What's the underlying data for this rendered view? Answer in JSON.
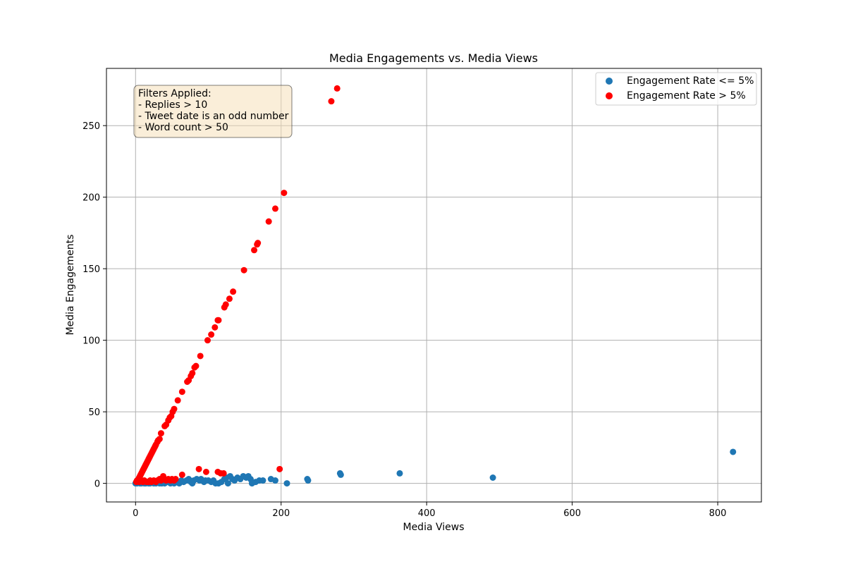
{
  "chart_data": {
    "type": "scatter",
    "title": "Media Engagements vs. Media Views",
    "xlabel": "Media Views",
    "ylabel": "Media Engagements",
    "xlim": [
      -40,
      860
    ],
    "ylim": [
      -13,
      290
    ],
    "xticks": [
      0,
      200,
      400,
      600,
      800
    ],
    "yticks": [
      0,
      50,
      100,
      150,
      200,
      250
    ],
    "grid": true,
    "legend_position": "top-right",
    "annotation": {
      "lines": [
        "Filters Applied:",
        "- Replies > 10",
        "- Tweet date is an odd number",
        "- Word count > 50"
      ]
    },
    "series": [
      {
        "name": "Engagement Rate <= 5%",
        "color": "#1f77b4",
        "points": [
          [
            0,
            0
          ],
          [
            2,
            0
          ],
          [
            4,
            1
          ],
          [
            6,
            0
          ],
          [
            8,
            0
          ],
          [
            10,
            1
          ],
          [
            12,
            0
          ],
          [
            14,
            0
          ],
          [
            16,
            1
          ],
          [
            18,
            0
          ],
          [
            20,
            0
          ],
          [
            22,
            1
          ],
          [
            25,
            0
          ],
          [
            28,
            0
          ],
          [
            30,
            1
          ],
          [
            33,
            0
          ],
          [
            36,
            0
          ],
          [
            40,
            0
          ],
          [
            44,
            1
          ],
          [
            48,
            0
          ],
          [
            50,
            1
          ],
          [
            53,
            0
          ],
          [
            57,
            1
          ],
          [
            60,
            0
          ],
          [
            63,
            2
          ],
          [
            66,
            1
          ],
          [
            70,
            2
          ],
          [
            73,
            3
          ],
          [
            76,
            1
          ],
          [
            78,
            0
          ],
          [
            80,
            2
          ],
          [
            84,
            3
          ],
          [
            88,
            2
          ],
          [
            90,
            3
          ],
          [
            94,
            1
          ],
          [
            96,
            2
          ],
          [
            100,
            2
          ],
          [
            104,
            1
          ],
          [
            107,
            2
          ],
          [
            110,
            0
          ],
          [
            114,
            0
          ],
          [
            118,
            1
          ],
          [
            122,
            3
          ],
          [
            125,
            4
          ],
          [
            127,
            0
          ],
          [
            130,
            5
          ],
          [
            133,
            3
          ],
          [
            136,
            2
          ],
          [
            140,
            4
          ],
          [
            144,
            3
          ],
          [
            148,
            5
          ],
          [
            152,
            4
          ],
          [
            155,
            5
          ],
          [
            158,
            3
          ],
          [
            160,
            0
          ],
          [
            165,
            1
          ],
          [
            170,
            2
          ],
          [
            175,
            2
          ],
          [
            186,
            3
          ],
          [
            192,
            2
          ],
          [
            208,
            0
          ],
          [
            236,
            3
          ],
          [
            237,
            2
          ],
          [
            281,
            7
          ],
          [
            282,
            6
          ],
          [
            363,
            7
          ],
          [
            491,
            4
          ],
          [
            821,
            22
          ]
        ]
      },
      {
        "name": "Engagement Rate > 5%",
        "color": "#ff0000",
        "points": [
          [
            1,
            1
          ],
          [
            2,
            2
          ],
          [
            3,
            2
          ],
          [
            4,
            3
          ],
          [
            5,
            4
          ],
          [
            6,
            5
          ],
          [
            7,
            6
          ],
          [
            8,
            7
          ],
          [
            9,
            8
          ],
          [
            10,
            9
          ],
          [
            11,
            10
          ],
          [
            12,
            11
          ],
          [
            13,
            12
          ],
          [
            14,
            13
          ],
          [
            15,
            14
          ],
          [
            16,
            15
          ],
          [
            17,
            16
          ],
          [
            18,
            17
          ],
          [
            19,
            18
          ],
          [
            20,
            19
          ],
          [
            21,
            20
          ],
          [
            22,
            21
          ],
          [
            23,
            22
          ],
          [
            24,
            23
          ],
          [
            25,
            24
          ],
          [
            26,
            25
          ],
          [
            27,
            26
          ],
          [
            28,
            27
          ],
          [
            30,
            29
          ],
          [
            31,
            30
          ],
          [
            33,
            31
          ],
          [
            35,
            35
          ],
          [
            40,
            40
          ],
          [
            42,
            41
          ],
          [
            45,
            44
          ],
          [
            47,
            46
          ],
          [
            49,
            47
          ],
          [
            51,
            50
          ],
          [
            53,
            52
          ],
          [
            58,
            58
          ],
          [
            64,
            64
          ],
          [
            71,
            71
          ],
          [
            73,
            72
          ],
          [
            76,
            75
          ],
          [
            78,
            77
          ],
          [
            81,
            81
          ],
          [
            83,
            82
          ],
          [
            89,
            89
          ],
          [
            99,
            100
          ],
          [
            104,
            104
          ],
          [
            109,
            109
          ],
          [
            113,
            114
          ],
          [
            114,
            114
          ],
          [
            122,
            123
          ],
          [
            124,
            125
          ],
          [
            129,
            129
          ],
          [
            134,
            134
          ],
          [
            149,
            149
          ],
          [
            163,
            163
          ],
          [
            167,
            167
          ],
          [
            168,
            168
          ],
          [
            183,
            183
          ],
          [
            192,
            192
          ],
          [
            204,
            203
          ],
          [
            269,
            267
          ],
          [
            277,
            276
          ],
          [
            5,
            1
          ],
          [
            8,
            2
          ],
          [
            10,
            1
          ],
          [
            12,
            2
          ],
          [
            15,
            1
          ],
          [
            18,
            1
          ],
          [
            20,
            2
          ],
          [
            22,
            1
          ],
          [
            25,
            2
          ],
          [
            28,
            1
          ],
          [
            30,
            2
          ],
          [
            33,
            3
          ],
          [
            35,
            2
          ],
          [
            38,
            5
          ],
          [
            40,
            3
          ],
          [
            42,
            2
          ],
          [
            45,
            3
          ],
          [
            48,
            2
          ],
          [
            50,
            3
          ],
          [
            53,
            2
          ],
          [
            55,
            3
          ],
          [
            64,
            6
          ],
          [
            87,
            10
          ],
          [
            97,
            8
          ],
          [
            113,
            8
          ],
          [
            117,
            7
          ],
          [
            121,
            7
          ],
          [
            198,
            10
          ]
        ]
      }
    ]
  }
}
